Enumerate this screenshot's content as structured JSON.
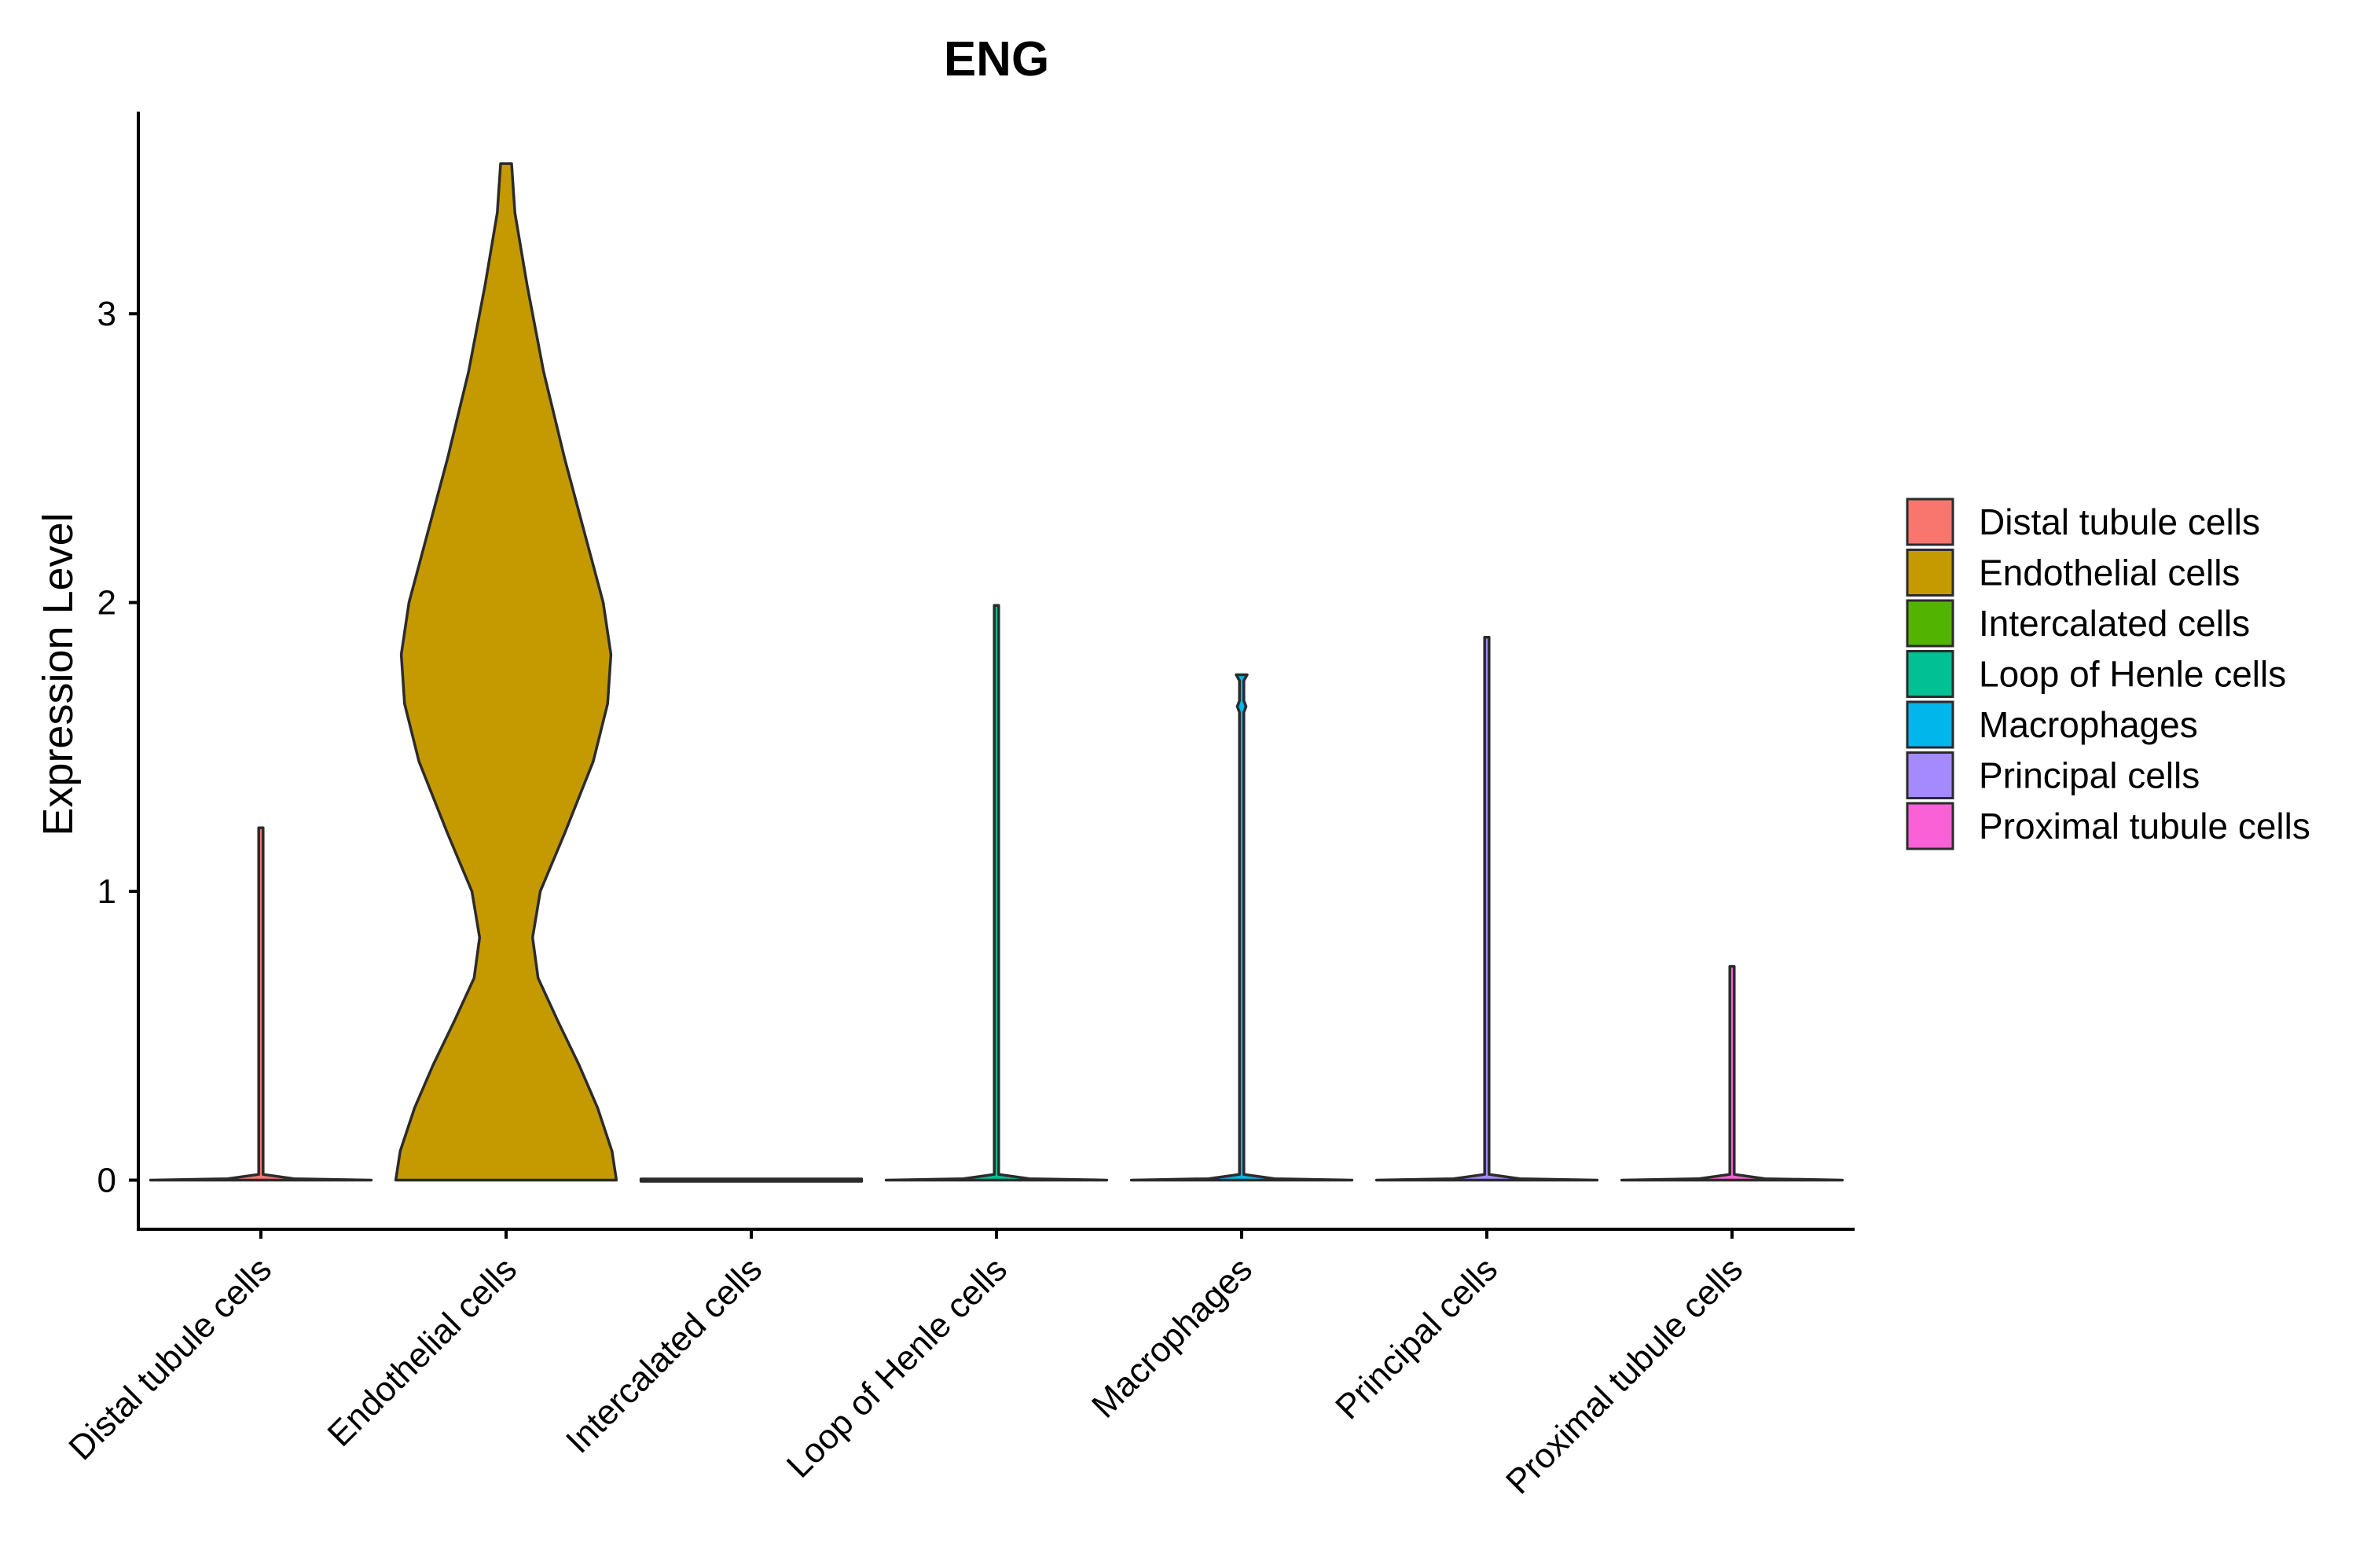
{
  "chart_data": {
    "type": "violin",
    "title": "ENG",
    "xlabel": "",
    "ylabel": "Expression Level",
    "ylim": [
      -0.17,
      3.7
    ],
    "yticks": [
      0,
      1,
      2,
      3
    ],
    "ytick_labels": [
      "0",
      "1",
      "2",
      "3"
    ],
    "grid": false,
    "legend_position": "right",
    "categories": [
      "Distal tubule cells",
      "Endothelial cells",
      "Intercalated cells",
      "Loop of Henle cells",
      "Macrophages",
      "Principal cells",
      "Proximal tubule cells"
    ],
    "series": [
      {
        "name": "Distal tubule cells",
        "color": "#F8766D",
        "max": 1.22,
        "profile": [
          [
            0,
            1.0
          ],
          [
            0.005,
            0.3
          ],
          [
            0.02,
            0.02
          ],
          [
            1.22,
            0.02
          ]
        ]
      },
      {
        "name": "Endothelial cells",
        "color": "#C49A00",
        "max": 3.52,
        "profile": [
          [
            0,
            1.0
          ],
          [
            0.1,
            0.96
          ],
          [
            0.25,
            0.83
          ],
          [
            0.4,
            0.66
          ],
          [
            0.55,
            0.47
          ],
          [
            0.7,
            0.29
          ],
          [
            0.84,
            0.24
          ],
          [
            1.0,
            0.31
          ],
          [
            1.2,
            0.53
          ],
          [
            1.45,
            0.79
          ],
          [
            1.65,
            0.92
          ],
          [
            1.82,
            0.95
          ],
          [
            2.0,
            0.88
          ],
          [
            2.2,
            0.74
          ],
          [
            2.5,
            0.53
          ],
          [
            2.8,
            0.34
          ],
          [
            3.1,
            0.19
          ],
          [
            3.35,
            0.08
          ],
          [
            3.52,
            0.05
          ]
        ]
      },
      {
        "name": "Intercalated cells",
        "color": "#53B400",
        "max": 0,
        "profile": [
          [
            0,
            1.0
          ]
        ]
      },
      {
        "name": "Loop of Henle cells",
        "color": "#00C094",
        "max": 1.99,
        "profile": [
          [
            0,
            1.0
          ],
          [
            0.005,
            0.3
          ],
          [
            0.02,
            0.02
          ],
          [
            1.99,
            0.02
          ]
        ]
      },
      {
        "name": "Macrophages",
        "color": "#00B6EB",
        "max": 1.75,
        "profile": [
          [
            0,
            1.0
          ],
          [
            0.005,
            0.3
          ],
          [
            0.02,
            0.02
          ],
          [
            1.62,
            0.02
          ],
          [
            1.64,
            0.04
          ],
          [
            1.66,
            0.02
          ],
          [
            1.73,
            0.02
          ],
          [
            1.75,
            0.05
          ]
        ]
      },
      {
        "name": "Principal cells",
        "color": "#A58AFF",
        "max": 1.88,
        "profile": [
          [
            0,
            1.0
          ],
          [
            0.005,
            0.3
          ],
          [
            0.02,
            0.02
          ],
          [
            1.88,
            0.02
          ]
        ]
      },
      {
        "name": "Proximal tubule cells",
        "color": "#FB61D7",
        "max": 0.74,
        "profile": [
          [
            0,
            1.0
          ],
          [
            0.005,
            0.3
          ],
          [
            0.02,
            0.02
          ],
          [
            0.74,
            0.02
          ]
        ]
      }
    ]
  }
}
